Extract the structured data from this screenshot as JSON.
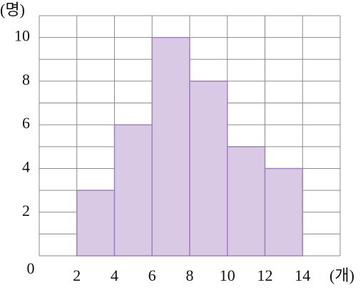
{
  "chart_data": {
    "type": "histogram",
    "y_label": "(명)",
    "x_label": "(개)",
    "bins": [
      2,
      4,
      6,
      8,
      10,
      12,
      14
    ],
    "values": [
      3,
      6,
      10,
      8,
      5,
      4
    ],
    "color": "#d9c9e5",
    "edge_color": "#a27fc2",
    "xlim": [
      0,
      16
    ],
    "ylim": [
      0,
      11
    ],
    "xticks": [
      2,
      4,
      6,
      8,
      10,
      12,
      14
    ],
    "yticks": [
      0,
      2,
      4,
      6,
      8,
      10
    ],
    "y_minor_ticks": [
      1,
      3,
      5,
      7,
      9,
      11
    ],
    "x_minor_ticks": [
      0,
      16
    ],
    "grid": true
  }
}
